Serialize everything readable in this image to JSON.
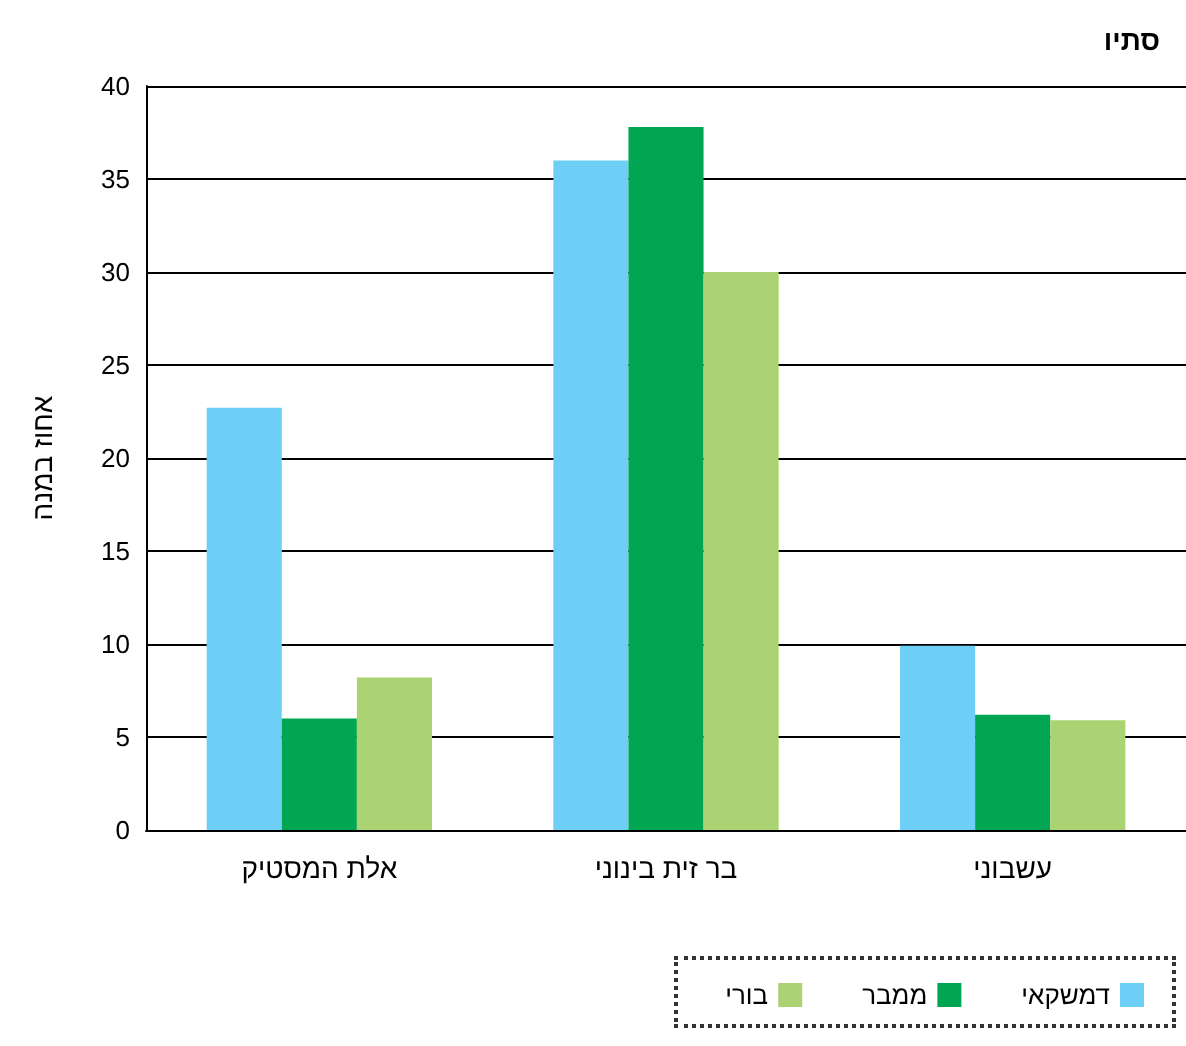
{
  "chart_data": {
    "type": "bar",
    "title": "סתיו",
    "ylabel": "אחוז במנה",
    "categories": [
      "אלת המסטיק",
      "בר זית בינוני",
      "עשבוני"
    ],
    "series": [
      {
        "name": "דמשקאי",
        "color": "#6dcff6",
        "values": [
          22.7,
          36,
          9.9
        ]
      },
      {
        "name": "ממבר",
        "color": "#00a651",
        "values": [
          6,
          37.8,
          6.2
        ]
      },
      {
        "name": "בורי",
        "color": "#acd373",
        "values": [
          8.2,
          30,
          5.9
        ]
      }
    ],
    "ylim": [
      0,
      40
    ],
    "yticks": [
      0,
      5,
      10,
      15,
      20,
      25,
      30,
      35,
      40
    ],
    "grid": "y",
    "legend": "bottom right"
  }
}
